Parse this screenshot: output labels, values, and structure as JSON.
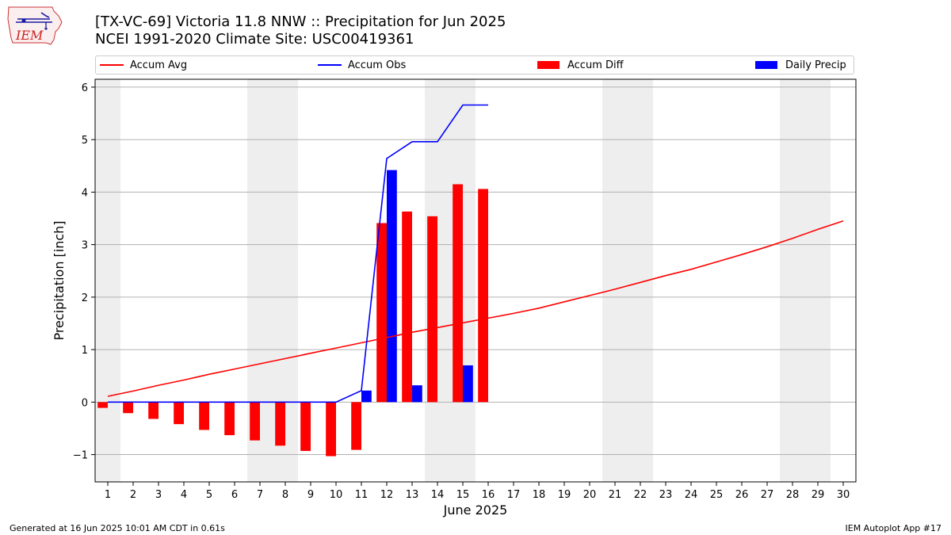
{
  "header": {
    "title_line1": "[TX-VC-69] Victoria 11.8 NNW :: Precipitation for Jun 2025",
    "title_line2": "NCEI 1991-2020 Climate Site: USC00419361"
  },
  "logo": {
    "text": "IEM",
    "icon": "iem-iowa-logo"
  },
  "footer": {
    "generated": "Generated at 16 Jun 2025 10:01 AM CDT in 0.61s",
    "app": "IEM Autoplot App #17"
  },
  "colors": {
    "avg": "#ff0000",
    "obs": "#0000ff",
    "diff": "#ff0000",
    "daily": "#0000ff",
    "weekend": "#eeeeee",
    "grid": "#b0b0b0"
  },
  "chart_data": {
    "type": "bar",
    "title": "[TX-VC-69] Victoria 11.8 NNW :: Precipitation for Jun 2025",
    "subtitle": "NCEI 1991-2020 Climate Site: USC00419361",
    "xlabel": "June 2025",
    "ylabel": "Precipitation [inch]",
    "x": [
      1,
      2,
      3,
      4,
      5,
      6,
      7,
      8,
      9,
      10,
      11,
      12,
      13,
      14,
      15,
      16,
      17,
      18,
      19,
      20,
      21,
      22,
      23,
      24,
      25,
      26,
      27,
      28,
      29,
      30
    ],
    "xlim": [
      0.5,
      30.5
    ],
    "ylim": [
      -1.52,
      6.15
    ],
    "yticks": [
      -1,
      0,
      1,
      2,
      3,
      4,
      5,
      6
    ],
    "grid": "horizontal",
    "legend_position": "top",
    "weekend_days": [
      1,
      7,
      8,
      14,
      15,
      21,
      22,
      28,
      29
    ],
    "series": [
      {
        "name": "Accum Avg",
        "kind": "line",
        "x": [
          1,
          2,
          3,
          4,
          5,
          6,
          7,
          8,
          9,
          10,
          11,
          12,
          13,
          14,
          15,
          16,
          17,
          18,
          19,
          20,
          21,
          22,
          23,
          24,
          25,
          26,
          27,
          28,
          29,
          30
        ],
        "values": [
          0.11,
          0.21,
          0.32,
          0.42,
          0.53,
          0.63,
          0.73,
          0.83,
          0.93,
          1.03,
          1.13,
          1.23,
          1.33,
          1.42,
          1.51,
          1.6,
          1.69,
          1.79,
          1.91,
          2.03,
          2.15,
          2.28,
          2.41,
          2.53,
          2.67,
          2.81,
          2.96,
          3.12,
          3.29,
          3.45
        ]
      },
      {
        "name": "Accum Obs",
        "kind": "line",
        "x": [
          1,
          2,
          3,
          4,
          5,
          6,
          7,
          8,
          9,
          10,
          11,
          12,
          13,
          14,
          15,
          16
        ],
        "values": [
          0,
          0,
          0,
          0,
          0,
          0,
          0,
          0,
          0,
          0,
          0.22,
          4.64,
          4.96,
          4.96,
          5.66,
          5.66
        ]
      },
      {
        "name": "Accum Diff",
        "kind": "bar",
        "x": [
          1,
          2,
          3,
          4,
          5,
          6,
          7,
          8,
          9,
          10,
          11,
          12,
          13,
          14,
          15,
          16
        ],
        "values": [
          -0.11,
          -0.21,
          -0.32,
          -0.42,
          -0.53,
          -0.63,
          -0.73,
          -0.83,
          -0.93,
          -1.03,
          -0.91,
          3.41,
          3.63,
          3.54,
          4.15,
          4.06
        ]
      },
      {
        "name": "Daily Precip",
        "kind": "bar",
        "x": [
          11,
          12,
          13,
          15
        ],
        "values": [
          0.22,
          4.42,
          0.32,
          0.7
        ]
      }
    ]
  }
}
